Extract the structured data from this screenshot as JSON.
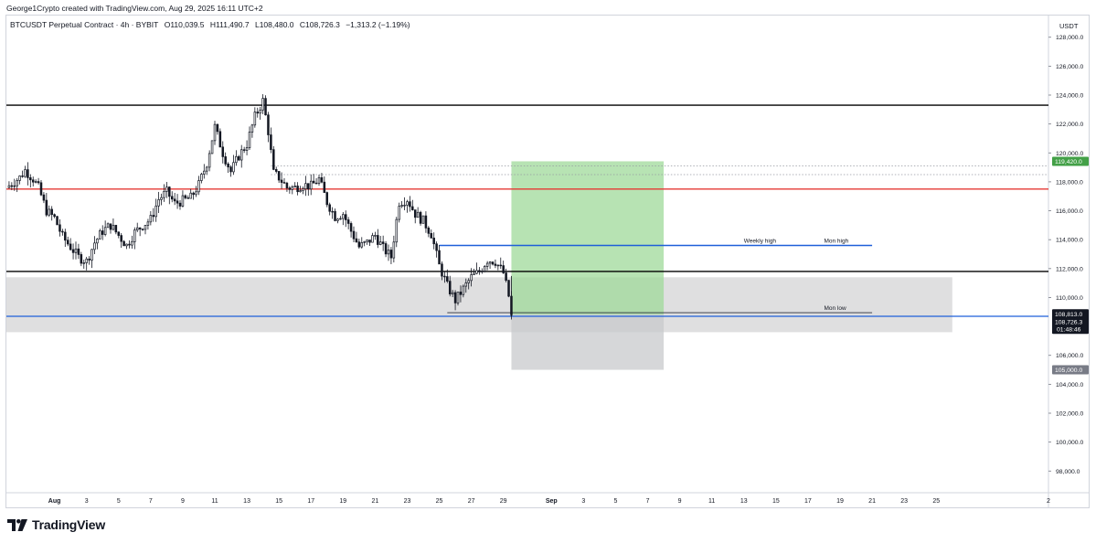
{
  "header": {
    "credit": "George1Crypto created with TradingView.com, Aug 29, 2025 16:11 UTC+2"
  },
  "legend": {
    "symbol": "BTCUSDT Perpetual Contract · 4h · BYBIT",
    "open": "O110,039.5",
    "high": "H111,490.7",
    "low": "L108,480.0",
    "close": "C108,726.3",
    "change": "−1,313.2 (−1.19%)"
  },
  "colors": {
    "up": "#131722",
    "down": "#131722",
    "horizontal_black": "#000000",
    "horizontal_red": "#e53935",
    "horizontal_blue": "#1e5fd9",
    "target_zone": "#9fd99a",
    "stop_zone": "#c8c9cc",
    "range_box": "#d9d9db",
    "price_tag": "#131722",
    "target_tag": "#43a047",
    "stop_tag": "#787b86"
  },
  "chart_data": {
    "type": "candlestick",
    "currency": "USDT",
    "timeframe": "4h",
    "x_range": [
      "2025-07-29",
      "2025-10-02"
    ],
    "y_range": [
      96500,
      129500
    ],
    "y_ticks": [
      "128,000.0",
      "126,000.0",
      "124,000.0",
      "122,000.0",
      "120,000.0",
      "118,000.0",
      "116,000.0",
      "114,000.0",
      "112,000.0",
      "110,000.0",
      "106,000.0",
      "104,000.0",
      "102,000.0",
      "100,000.0",
      "98,000.0"
    ],
    "y_tick_values": [
      128000,
      126000,
      124000,
      122000,
      120000,
      118000,
      116000,
      114000,
      112000,
      110000,
      106000,
      104000,
      102000,
      100000,
      98000
    ],
    "x_ticks": [
      {
        "label": "Aug",
        "date": "2025-08-01",
        "bold": true
      },
      {
        "label": "3",
        "date": "2025-08-03"
      },
      {
        "label": "5",
        "date": "2025-08-05"
      },
      {
        "label": "7",
        "date": "2025-08-07"
      },
      {
        "label": "9",
        "date": "2025-08-09"
      },
      {
        "label": "11",
        "date": "2025-08-11"
      },
      {
        "label": "13",
        "date": "2025-08-13"
      },
      {
        "label": "15",
        "date": "2025-08-15"
      },
      {
        "label": "17",
        "date": "2025-08-17"
      },
      {
        "label": "19",
        "date": "2025-08-19"
      },
      {
        "label": "21",
        "date": "2025-08-21"
      },
      {
        "label": "23",
        "date": "2025-08-23"
      },
      {
        "label": "25",
        "date": "2025-08-25"
      },
      {
        "label": "27",
        "date": "2025-08-27"
      },
      {
        "label": "29",
        "date": "2025-08-29"
      },
      {
        "label": "Sep",
        "date": "2025-09-01",
        "bold": true
      },
      {
        "label": "3",
        "date": "2025-09-03"
      },
      {
        "label": "5",
        "date": "2025-09-05"
      },
      {
        "label": "7",
        "date": "2025-09-07"
      },
      {
        "label": "9",
        "date": "2025-09-09"
      },
      {
        "label": "11",
        "date": "2025-09-11"
      },
      {
        "label": "13",
        "date": "2025-09-13"
      },
      {
        "label": "15",
        "date": "2025-09-15"
      },
      {
        "label": "17",
        "date": "2025-09-17"
      },
      {
        "label": "19",
        "date": "2025-09-19"
      },
      {
        "label": "21",
        "date": "2025-09-21"
      },
      {
        "label": "23",
        "date": "2025-09-23"
      },
      {
        "label": "25",
        "date": "2025-09-25"
      },
      {
        "label": "2",
        "date": "2025-10-02"
      }
    ],
    "close_path": [
      [
        "2025-07-29T00:00",
        117600
      ],
      [
        "2025-07-29T20:00",
        118300
      ],
      [
        "2025-07-30T04:00",
        118800
      ],
      [
        "2025-07-30T16:00",
        118200
      ],
      [
        "2025-07-31T00:00",
        117600
      ],
      [
        "2025-07-31T12:00",
        116000
      ],
      [
        "2025-08-01T00:00",
        115500
      ],
      [
        "2025-08-01T12:00",
        114200
      ],
      [
        "2025-08-02T00:00",
        113500
      ],
      [
        "2025-08-02T12:00",
        112800
      ],
      [
        "2025-08-03T00:00",
        112500
      ],
      [
        "2025-08-03T12:00",
        113800
      ],
      [
        "2025-08-04T00:00",
        114600
      ],
      [
        "2025-08-04T12:00",
        115000
      ],
      [
        "2025-08-05T00:00",
        114300
      ],
      [
        "2025-08-05T12:00",
        113600
      ],
      [
        "2025-08-06T00:00",
        114500
      ],
      [
        "2025-08-06T12:00",
        115000
      ],
      [
        "2025-08-07T00:00",
        115400
      ],
      [
        "2025-08-07T12:00",
        116800
      ],
      [
        "2025-08-08T00:00",
        117300
      ],
      [
        "2025-08-08T12:00",
        116500
      ],
      [
        "2025-08-09T00:00",
        116700
      ],
      [
        "2025-08-09T12:00",
        116900
      ],
      [
        "2025-08-10T00:00",
        117800
      ],
      [
        "2025-08-10T12:00",
        119300
      ],
      [
        "2025-08-11T00:00",
        121800
      ],
      [
        "2025-08-11T12:00",
        120000
      ],
      [
        "2025-08-12T00:00",
        118700
      ],
      [
        "2025-08-12T12:00",
        119800
      ],
      [
        "2025-08-13T00:00",
        120600
      ],
      [
        "2025-08-13T12:00",
        122500
      ],
      [
        "2025-08-14T00:00",
        123600
      ],
      [
        "2025-08-14T08:00",
        121500
      ],
      [
        "2025-08-14T16:00",
        118600
      ],
      [
        "2025-08-15T00:00",
        118300
      ],
      [
        "2025-08-15T12:00",
        117600
      ],
      [
        "2025-08-16T00:00",
        117600
      ],
      [
        "2025-08-16T12:00",
        117800
      ],
      [
        "2025-08-17T00:00",
        117700
      ],
      [
        "2025-08-17T12:00",
        118200
      ],
      [
        "2025-08-18T00:00",
        116600
      ],
      [
        "2025-08-18T12:00",
        115600
      ],
      [
        "2025-08-19T00:00",
        115800
      ],
      [
        "2025-08-19T12:00",
        114600
      ],
      [
        "2025-08-20T00:00",
        113500
      ],
      [
        "2025-08-20T12:00",
        113800
      ],
      [
        "2025-08-21T00:00",
        114300
      ],
      [
        "2025-08-21T12:00",
        113400
      ],
      [
        "2025-08-22T00:00",
        112800
      ],
      [
        "2025-08-22T12:00",
        116600
      ],
      [
        "2025-08-23T00:00",
        116800
      ],
      [
        "2025-08-23T12:00",
        115800
      ],
      [
        "2025-08-24T00:00",
        115300
      ],
      [
        "2025-08-24T12:00",
        114400
      ],
      [
        "2025-08-25T00:00",
        112200
      ],
      [
        "2025-08-25T12:00",
        110800
      ],
      [
        "2025-08-26T00:00",
        109800
      ],
      [
        "2025-08-26T12:00",
        110600
      ],
      [
        "2025-08-27T00:00",
        111400
      ],
      [
        "2025-08-27T12:00",
        111800
      ],
      [
        "2025-08-28T00:00",
        112600
      ],
      [
        "2025-08-28T12:00",
        112500
      ],
      [
        "2025-08-29T00:00",
        111700
      ],
      [
        "2025-08-29T08:00",
        110100
      ],
      [
        "2025-08-29T12:00",
        108726.3
      ]
    ],
    "horizontal_levels": [
      {
        "price": 123300,
        "color": "black"
      },
      {
        "price": 117500,
        "color": "red"
      },
      {
        "price": 111800,
        "color": "black"
      },
      {
        "price": 108700,
        "color": "blue"
      }
    ],
    "dotted_levels": [
      119100,
      118500
    ],
    "annotated_levels": [
      {
        "label": "Weekly high",
        "price": 113600,
        "from": "2025-08-25",
        "to": "2025-09-21"
      },
      {
        "label": "Mon high",
        "price": 113600
      },
      {
        "label": "Mon low",
        "price": 108950,
        "from": "2025-08-25T12:00",
        "to": "2025-09-21"
      }
    ],
    "range_box": {
      "from": "2025-07-29",
      "to": "2025-09-26",
      "top": 111400,
      "bottom": 107600
    },
    "position": {
      "from": "2025-08-29T12:00",
      "to": "2025-09-08",
      "entry": 108813.0,
      "target": 119420.0,
      "stop": 105000.0
    },
    "price_tags": {
      "target": "119,420.0",
      "entry": "108,813.0",
      "last": "108,726.3",
      "countdown": "01:48:46",
      "stop": "105,000.0"
    }
  },
  "branding": {
    "name": "TradingView"
  }
}
